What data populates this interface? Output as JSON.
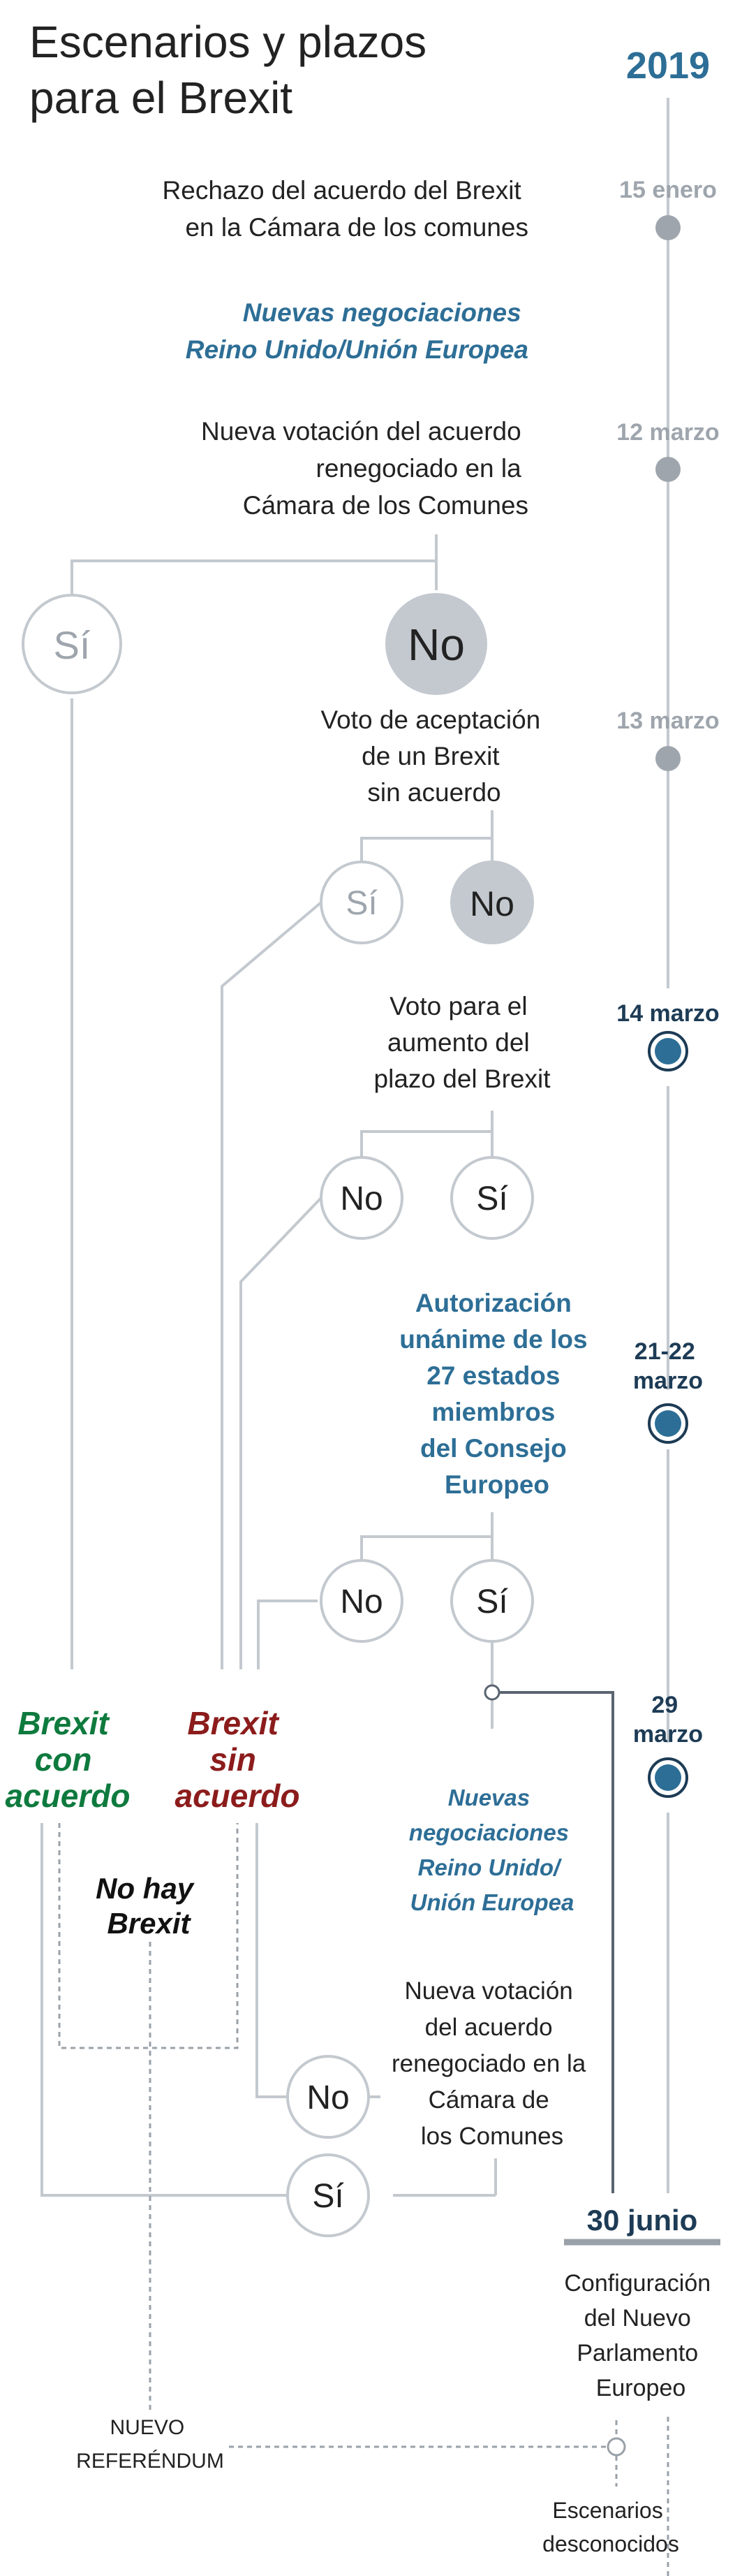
{
  "title": [
    "Escenarios y plazos",
    "para el Brexit"
  ],
  "year": "2019",
  "timeline": {
    "d1": "15 enero",
    "d2": "12 marzo",
    "d3": "13 marzo",
    "d4": "14 marzo",
    "d5": [
      "21-22",
      "marzo"
    ],
    "d6": [
      "29",
      "marzo"
    ],
    "d7": "30 junio"
  },
  "texts": {
    "rechazo": [
      "Rechazo del acuerdo del Brexit",
      "en la Cámara de los comunes"
    ],
    "negociaciones1": [
      "Nuevas negociaciones",
      "Reino Unido/Unión Europea"
    ],
    "votacion1": [
      "Nueva votación del acuerdo",
      "renegociado en la",
      "Cámara de los Comunes"
    ],
    "voto_sin_acuerdo": [
      "Voto de aceptación",
      "de un Brexit",
      "sin acuerdo"
    ],
    "voto_plazo": [
      "Voto para el",
      "aumento del",
      "plazo del Brexit"
    ],
    "autorizacion": [
      "Autorización",
      "unánime de los",
      "27 estados",
      "miembros",
      "del Consejo",
      "Europeo"
    ],
    "negociaciones2": [
      "Nuevas",
      "negociaciones",
      "Reino Unido/",
      "Unión Europea"
    ],
    "votacion2": [
      "Nueva votación",
      "del acuerdo",
      "renegociado en la",
      "Cámara de",
      "los Comunes"
    ],
    "configuracion": [
      "Configuración",
      "del Nuevo",
      "Parlamento",
      "Europeo"
    ],
    "referendum": [
      "NUEVO",
      "REFERÉNDUM"
    ],
    "desconocidos": [
      "Escenarios",
      "desconocidos"
    ]
  },
  "outcomes": {
    "con_acuerdo": [
      "Brexit",
      "con",
      "acuerdo"
    ],
    "sin_acuerdo": [
      "Brexit",
      "sin",
      "acuerdo"
    ],
    "no_hay": [
      "No hay",
      "Brexit"
    ]
  },
  "answers": {
    "si": "Sí",
    "no": "No"
  },
  "colors": {
    "blue": "#2d6e96",
    "navy": "#1d3b55",
    "gray_text": "#9ea5ad",
    "line": "#c3c9cf",
    "dark_line": "#5a6470",
    "green": "#0e7a3e",
    "red": "#8c1c1c"
  }
}
